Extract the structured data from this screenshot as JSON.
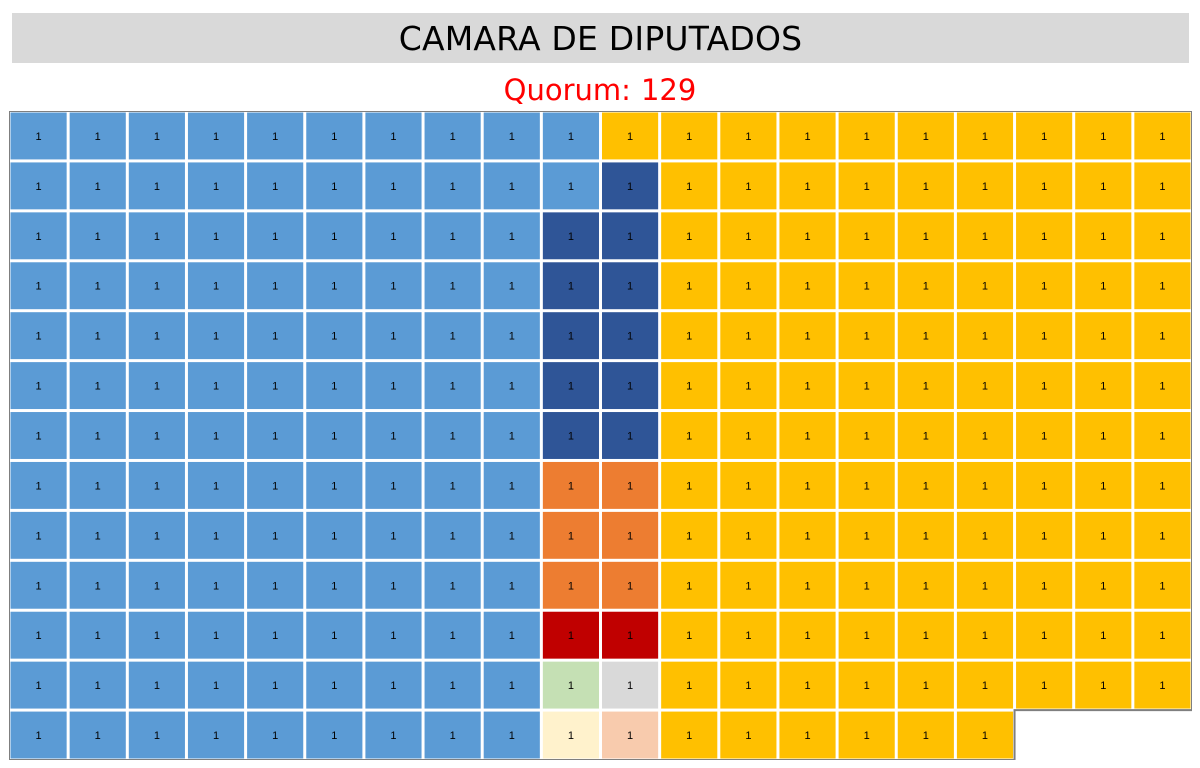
{
  "header": {
    "title": "CAMARA DE DIPUTADOS"
  },
  "quorum": {
    "label": "Quorum:",
    "value": "129"
  },
  "chart_data": {
    "type": "waffle",
    "seat_label": "1",
    "columns": 20,
    "rows": 13,
    "fill_order": "row-major (left to right, top to bottom)",
    "seats_per_row": [
      20,
      20,
      20,
      20,
      20,
      20,
      20,
      20,
      20,
      20,
      20,
      20,
      17
    ],
    "total_seats": 257,
    "colors": {
      "blue": "#5b9bd5",
      "dark_blue": "#2f5597",
      "yellow": "#ffc000",
      "orange": "#ed7d31",
      "red": "#c00000",
      "light_green": "#c5e0b4",
      "light_gray": "#d9d9d9",
      "cream": "#fff2cc",
      "peach": "#f8cbad"
    },
    "column_color_runs": [
      [
        [
          "blue",
          10
        ],
        [
          "yellow",
          10
        ]
      ],
      [
        [
          "blue",
          10
        ],
        [
          "dark_blue",
          1
        ],
        [
          "yellow",
          9
        ]
      ],
      [
        [
          "blue",
          9
        ],
        [
          "dark_blue",
          2
        ],
        [
          "yellow",
          9
        ]
      ],
      [
        [
          "blue",
          9
        ],
        [
          "dark_blue",
          2
        ],
        [
          "yellow",
          9
        ]
      ],
      [
        [
          "blue",
          9
        ],
        [
          "dark_blue",
          2
        ],
        [
          "yellow",
          9
        ]
      ],
      [
        [
          "blue",
          9
        ],
        [
          "dark_blue",
          2
        ],
        [
          "yellow",
          9
        ]
      ],
      [
        [
          "blue",
          9
        ],
        [
          "dark_blue",
          2
        ],
        [
          "yellow",
          9
        ]
      ],
      [
        [
          "blue",
          9
        ],
        [
          "orange",
          2
        ],
        [
          "yellow",
          9
        ]
      ],
      [
        [
          "blue",
          9
        ],
        [
          "orange",
          2
        ],
        [
          "yellow",
          9
        ]
      ],
      [
        [
          "blue",
          9
        ],
        [
          "orange",
          2
        ],
        [
          "yellow",
          9
        ]
      ],
      [
        [
          "blue",
          9
        ],
        [
          "red",
          2
        ],
        [
          "yellow",
          9
        ]
      ],
      [
        [
          "blue",
          9
        ],
        [
          "light_green",
          1
        ],
        [
          "light_gray",
          1
        ],
        [
          "yellow",
          9
        ]
      ],
      [
        [
          "blue",
          9
        ],
        [
          "cream",
          1
        ],
        [
          "peach",
          1
        ],
        [
          "yellow",
          6
        ]
      ]
    ]
  }
}
